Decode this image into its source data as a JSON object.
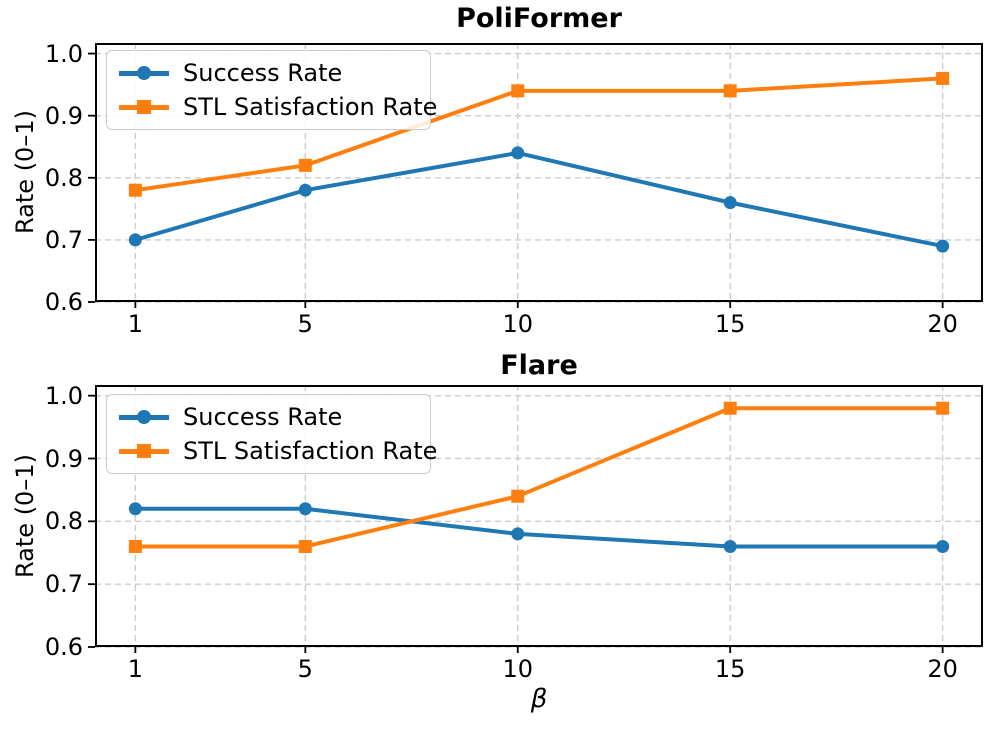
{
  "figure": {
    "xlabel": "β",
    "ylabel": "Rate (0–1)",
    "colors": {
      "success_rate": "#1f77b4",
      "stl_satisfaction_rate": "#ff7f0e",
      "grid": "#cccccc",
      "spine": "#000000",
      "text": "#000000",
      "legend_border": "#cccccc"
    },
    "legend": [
      {
        "label": "Success Rate",
        "marker": "circle",
        "color": "#1f77b4"
      },
      {
        "label": "STL Satisfaction Rate",
        "marker": "square",
        "color": "#ff7f0e"
      }
    ]
  },
  "chart_data": [
    {
      "type": "line",
      "title": "PoliFormer",
      "x": [
        1,
        5,
        10,
        15,
        20
      ],
      "xtick_labels": [
        "1",
        "5",
        "10",
        "15",
        "20"
      ],
      "yticks": [
        0.6,
        0.7,
        0.8,
        0.9,
        1.0
      ],
      "ytick_labels": [
        "0.6",
        "0.7",
        "0.8",
        "0.9",
        "1.0"
      ],
      "xlim": [
        0.05,
        20.95
      ],
      "ylim": [
        0.6,
        1.017
      ],
      "xlabel": "",
      "ylabel": "Rate (0–1)",
      "grid": true,
      "legend_position": "upper left",
      "series": [
        {
          "name": "Success Rate",
          "marker": "circle",
          "color": "#1f77b4",
          "values": [
            0.7,
            0.78,
            0.84,
            0.76,
            0.69
          ]
        },
        {
          "name": "STL Satisfaction Rate",
          "marker": "square",
          "color": "#ff7f0e",
          "values": [
            0.78,
            0.82,
            0.94,
            0.94,
            0.96
          ]
        }
      ]
    },
    {
      "type": "line",
      "title": "Flare",
      "x": [
        1,
        5,
        10,
        15,
        20
      ],
      "xtick_labels": [
        "1",
        "5",
        "10",
        "15",
        "20"
      ],
      "yticks": [
        0.6,
        0.7,
        0.8,
        0.9,
        1.0
      ],
      "ytick_labels": [
        "0.6",
        "0.7",
        "0.8",
        "0.9",
        "1.0"
      ],
      "xlim": [
        0.05,
        20.95
      ],
      "ylim": [
        0.6,
        1.017
      ],
      "xlabel": "β",
      "ylabel": "Rate (0–1)",
      "grid": true,
      "legend_position": "upper left",
      "series": [
        {
          "name": "Success Rate",
          "marker": "circle",
          "color": "#1f77b4",
          "values": [
            0.82,
            0.82,
            0.78,
            0.76,
            0.76
          ]
        },
        {
          "name": "STL Satisfaction Rate",
          "marker": "square",
          "color": "#ff7f0e",
          "values": [
            0.76,
            0.76,
            0.84,
            0.98,
            0.98
          ]
        }
      ]
    }
  ]
}
